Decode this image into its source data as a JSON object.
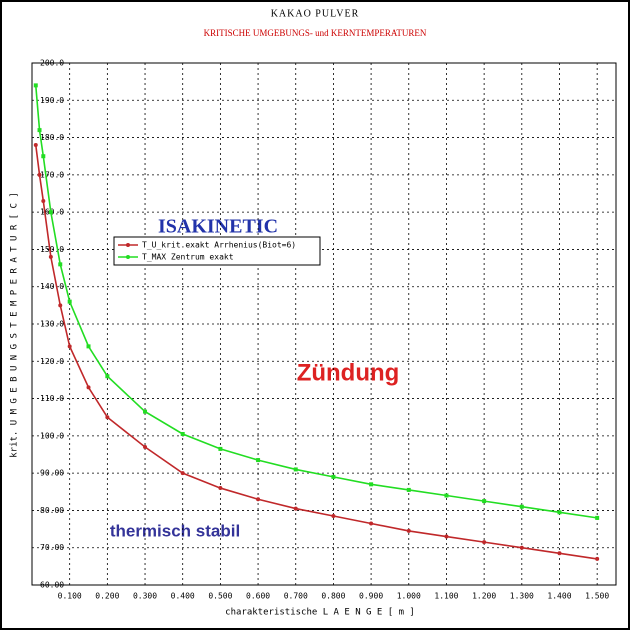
{
  "chart_data": {
    "type": "line",
    "title": "KAKAO PULVER",
    "subtitle": "KRITISCHE UMGEBUNGS- und KERNTEMPERATUREN",
    "x_label": "charakteristische L A E N G E  [ m ]",
    "y_label": "krit. U M G E B U N G S T E M P E R A T U R  [ C ]",
    "annotations": [
      "ISAKINETIC",
      "Zündung",
      "thermisch stabil"
    ],
    "x": [
      0.01,
      0.02,
      0.03,
      0.05,
      0.075,
      0.1,
      0.15,
      0.2,
      0.3,
      0.4,
      0.5,
      0.6,
      0.7,
      0.8,
      0.9,
      1.0,
      1.1,
      1.2,
      1.3,
      1.4,
      1.5
    ],
    "series": [
      {
        "name": "T_U_krit.exakt Arrhenius(Biot=6)",
        "color": "#c0282a",
        "values": [
          178,
          170,
          163,
          148,
          135,
          124,
          113,
          105,
          97,
          90,
          86,
          83,
          80.5,
          78.5,
          76.5,
          74.5,
          73,
          71.5,
          70,
          68.5,
          67
        ]
      },
      {
        "name": "T_MAX Zentrum exakt",
        "color": "#22dd22",
        "values": [
          194,
          182,
          175,
          160,
          146,
          136,
          124,
          116,
          106.5,
          100.5,
          96.5,
          93.5,
          91,
          89,
          87,
          85.5,
          84,
          82.5,
          81,
          79.5,
          78
        ]
      }
    ],
    "xlim": [
      0,
      1.55
    ],
    "xticks": [
      {
        "value": 0.1,
        "label": "0.100"
      },
      {
        "value": 0.2,
        "label": "0.200"
      },
      {
        "value": 0.3,
        "label": "0.300"
      },
      {
        "value": 0.4,
        "label": "0.400"
      },
      {
        "value": 0.5,
        "label": "0.500"
      },
      {
        "value": 0.6,
        "label": "0.600"
      },
      {
        "value": 0.7,
        "label": "0.700"
      },
      {
        "value": 0.8,
        "label": "0.800"
      },
      {
        "value": 0.9,
        "label": "0.900"
      },
      {
        "value": 1.0,
        "label": "1.000"
      },
      {
        "value": 1.1,
        "label": "1.100"
      },
      {
        "value": 1.2,
        "label": "1.200"
      },
      {
        "value": 1.3,
        "label": "1.300"
      },
      {
        "value": 1.4,
        "label": "1.400"
      },
      {
        "value": 1.5,
        "label": "1.500"
      }
    ],
    "ylim": [
      60,
      200
    ],
    "yticks": [
      {
        "value": 60,
        "label": "60.00"
      },
      {
        "value": 70,
        "label": "70.00"
      },
      {
        "value": 80,
        "label": "80.00"
      },
      {
        "value": 90,
        "label": "90.00"
      },
      {
        "value": 100,
        "label": "100.0"
      },
      {
        "value": 110,
        "label": "110.0"
      },
      {
        "value": 120,
        "label": "120.0"
      },
      {
        "value": 130,
        "label": "130.0"
      },
      {
        "value": 140,
        "label": "140.0"
      },
      {
        "value": 150,
        "label": "150.0"
      },
      {
        "value": 160,
        "label": "160.0"
      },
      {
        "value": 170,
        "label": "170.0"
      },
      {
        "value": 180,
        "label": "180.0"
      },
      {
        "value": 190,
        "label": "190.0"
      },
      {
        "value": 200,
        "label": "200.0"
      }
    ],
    "grid": true
  }
}
